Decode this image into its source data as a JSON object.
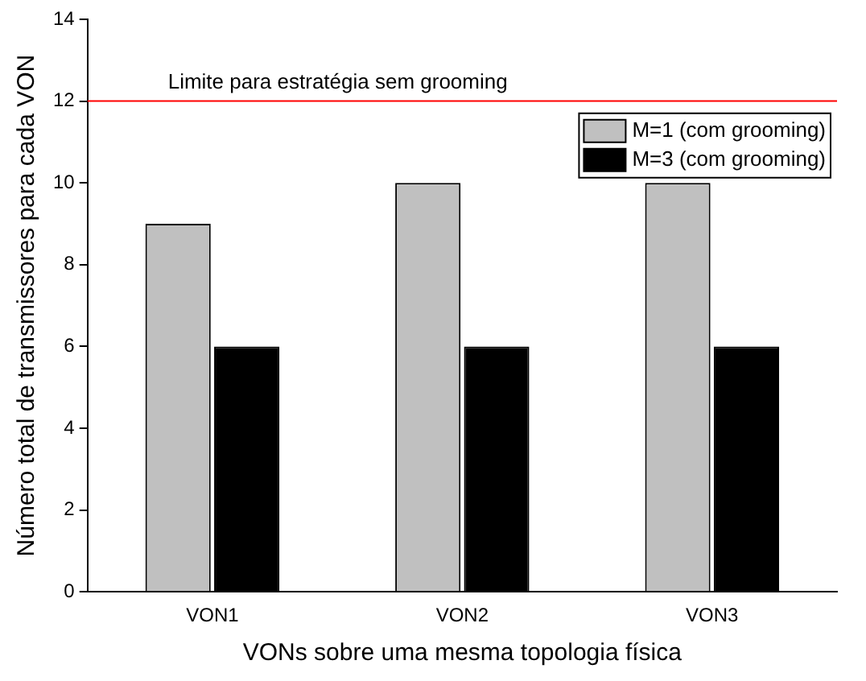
{
  "chart_data": {
    "type": "bar",
    "xlabel": "VONs sobre uma mesma topologia física",
    "ylabel": "Número total de transmissores para cada VON",
    "categories": [
      "VON1",
      "VON2",
      "VON3"
    ],
    "series": [
      {
        "name": "M=1 (com grooming)",
        "color": "#c0c0c0",
        "values": [
          9,
          10,
          10
        ]
      },
      {
        "name": "M=3 (com grooming)",
        "color": "#000000",
        "values": [
          6,
          6,
          6
        ]
      }
    ],
    "ylim": [
      0,
      14
    ],
    "yticks": [
      0,
      2,
      4,
      6,
      8,
      10,
      12,
      14
    ],
    "grid": false,
    "legend": "top right",
    "ref_lines": [
      {
        "axis": "y",
        "value": 12,
        "label": "Limite para estratégia sem grooming",
        "color": "#ff0000"
      }
    ]
  }
}
